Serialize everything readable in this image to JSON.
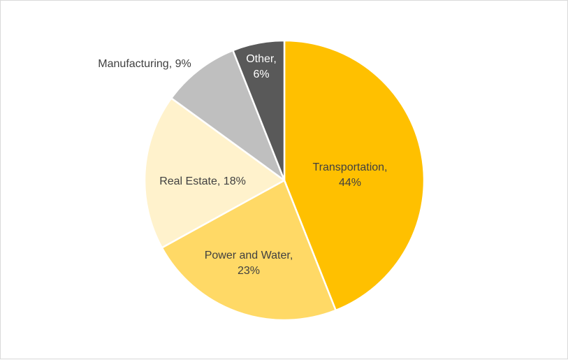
{
  "chart_data": {
    "type": "pie",
    "title": "",
    "start_angle_deg": 0,
    "direction": "clockwise",
    "legend": "none",
    "slices": [
      {
        "category": "Transportation",
        "value": 44,
        "label_line1": "Transportation,",
        "label_line2": "44%",
        "color": "#FFC000",
        "label_color": "#404040"
      },
      {
        "category": "Power and Water",
        "value": 23,
        "label_line1": "Power and Water,",
        "label_line2": "23%",
        "color": "#FFD966",
        "label_color": "#404040"
      },
      {
        "category": "Real Estate",
        "value": 18,
        "label_line1": "Real Estate, 18%",
        "label_line2": "",
        "color": "#FFF2CC",
        "label_color": "#404040"
      },
      {
        "category": "Manufacturing",
        "value": 9,
        "label_line1": "Manufacturing, 9%",
        "label_line2": "",
        "color": "#BFBFBF",
        "label_color": "#404040"
      },
      {
        "category": "Other",
        "value": 6,
        "label_line1": "Other,",
        "label_line2": "6%",
        "color": "#595959",
        "label_color": "#FFFFFF"
      }
    ]
  }
}
